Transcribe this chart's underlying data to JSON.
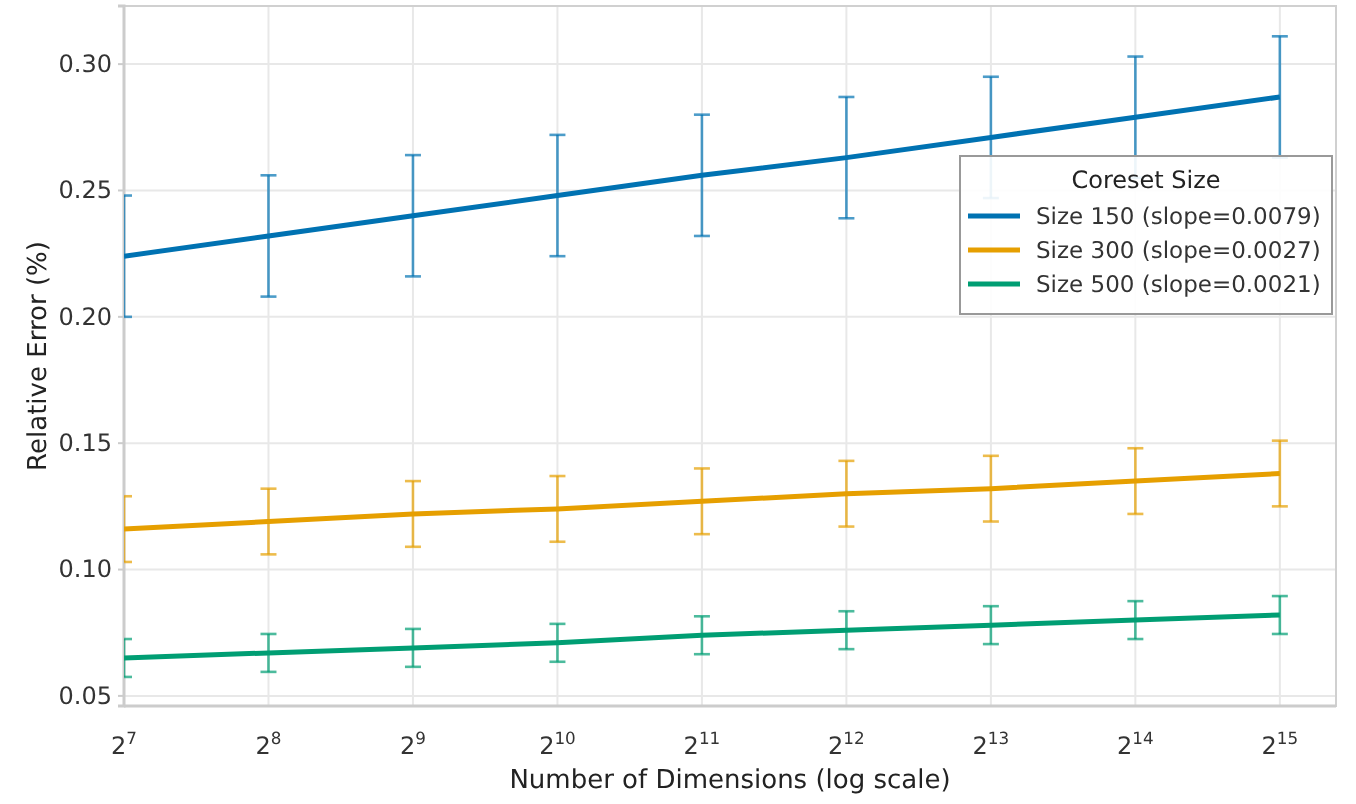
{
  "chart_data": {
    "type": "line",
    "xlabel": "Number of Dimensions (log scale)",
    "ylabel": "Relative Error (%)",
    "legend_title": "Coreset Size",
    "log": "x",
    "grid": true,
    "legend": "top right",
    "marker": "none",
    "line_style": "solid",
    "x": [
      128,
      256,
      512,
      1024,
      2048,
      4096,
      8192,
      16384,
      32768
    ],
    "xlim": [
      128,
      42900
    ],
    "xticks": [
      {
        "value": 128,
        "label": "2$^{7}$"
      },
      {
        "value": 256,
        "label": "2$^{8}$"
      },
      {
        "value": 512,
        "label": "2$^{9}$"
      },
      {
        "value": 1024,
        "label": "2$^{10}$"
      },
      {
        "value": 2048,
        "label": "2$^{11}$"
      },
      {
        "value": 4096,
        "label": "2$^{12}$"
      },
      {
        "value": 8192,
        "label": "2$^{13}$"
      },
      {
        "value": 16384,
        "label": "2$^{14}$"
      },
      {
        "value": 32768,
        "label": "2$^{15}$"
      }
    ],
    "ylim": [
      0.046,
      0.323
    ],
    "yticks": [
      {
        "value": 0.05,
        "label": "0.05"
      },
      {
        "value": 0.1,
        "label": "0.10"
      },
      {
        "value": 0.15,
        "label": "0.15"
      },
      {
        "value": 0.2,
        "label": "0.20"
      },
      {
        "value": 0.25,
        "label": "0.25"
      },
      {
        "value": 0.3,
        "label": "0.30"
      }
    ],
    "series": [
      {
        "name": "Size 150 (slope=0.0079)",
        "color": "#0072b2",
        "values": [
          0.224,
          0.232,
          0.24,
          0.248,
          0.256,
          0.263,
          0.271,
          0.279,
          0.287
        ],
        "errors": [
          0.024,
          0.024,
          0.024,
          0.024,
          0.024,
          0.024,
          0.024,
          0.024,
          0.024
        ]
      },
      {
        "name": "Size 300 (slope=0.0027)",
        "color": "#e69f00",
        "values": [
          0.116,
          0.119,
          0.122,
          0.124,
          0.127,
          0.13,
          0.132,
          0.135,
          0.138
        ],
        "errors": [
          0.013,
          0.013,
          0.013,
          0.013,
          0.013,
          0.013,
          0.013,
          0.013,
          0.013
        ]
      },
      {
        "name": "Size 500 (slope=0.0021)",
        "color": "#009e73",
        "values": [
          0.065,
          0.067,
          0.069,
          0.071,
          0.074,
          0.076,
          0.078,
          0.08,
          0.082
        ],
        "errors": [
          0.0075,
          0.0075,
          0.0075,
          0.0075,
          0.0075,
          0.0075,
          0.0075,
          0.0075,
          0.0075
        ]
      }
    ]
  }
}
